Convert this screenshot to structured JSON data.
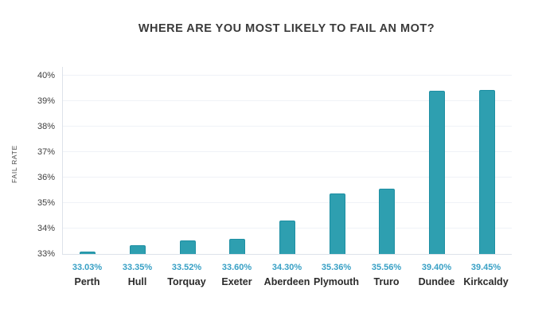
{
  "chart_data": {
    "type": "bar",
    "title": "WHERE ARE YOU MOST LIKELY TO FAIL AN MOT?",
    "xlabel": "",
    "ylabel": "FAIL RATE",
    "categories": [
      "Perth",
      "Hull",
      "Torquay",
      "Exeter",
      "Aberdeen",
      "Plymouth",
      "Truro",
      "Dundee",
      "Kirkcaldy"
    ],
    "values": [
      33.03,
      33.35,
      33.52,
      33.6,
      34.3,
      35.36,
      35.56,
      39.4,
      39.45
    ],
    "value_labels": [
      "33.03%",
      "33.35%",
      "33.52%",
      "33.60%",
      "34.30%",
      "35.36%",
      "35.56%",
      "39.40%",
      "39.45%"
    ],
    "ylim": [
      33,
      40
    ],
    "yticks": [
      33,
      34,
      35,
      36,
      37,
      38,
      39,
      40
    ],
    "ytick_labels": [
      "33%",
      "34%",
      "35%",
      "36%",
      "37%",
      "38%",
      "39%",
      "40%"
    ],
    "grid": true,
    "legend": "none",
    "colors": {
      "bar_fill": "#2E9FB0",
      "bar_border": "#1E8FA3",
      "value_label": "#38A0C5",
      "category_label": "#2B2B2B",
      "title": "#3A3A3A",
      "gridline": "#EFF2F7",
      "axis_line": "#DDE2EA",
      "background": "#FFFFFF"
    }
  }
}
